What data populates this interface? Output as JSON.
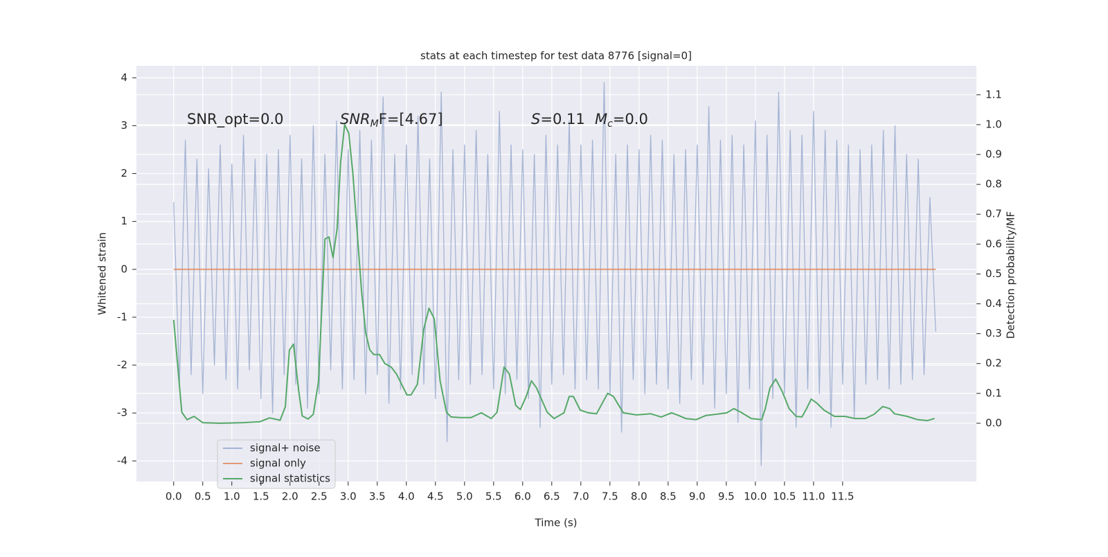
{
  "chart_data": {
    "type": "line",
    "title": "stats at each timestep for test data 8776 [signal=0]",
    "x_label": "Time (s)",
    "y_label": "Whitened strain",
    "y2_label": "Detection probability/MF",
    "annotations": [
      "SNR_opt=0.0",
      [
        "SNR",
        "M",
        "F=[4.67]"
      ],
      [
        "S",
        "=0.11",
        "M",
        "c",
        "=0.0"
      ]
    ],
    "xlim": [
      -0.64,
      13.8
    ],
    "ylim": [
      -4.43,
      4.25
    ],
    "y2lim": [
      -0.195,
      1.197
    ],
    "xticks": [
      {
        "value": 0,
        "label": "0.0"
      },
      {
        "value": 0.5,
        "label": "0.5"
      },
      {
        "value": 1,
        "label": "1.0"
      },
      {
        "value": 1.5,
        "label": "1.5"
      },
      {
        "value": 2,
        "label": "2.0"
      },
      {
        "value": 2.5,
        "label": "2.5"
      },
      {
        "value": 3,
        "label": "3.0"
      },
      {
        "value": 3.5,
        "label": "3.5"
      },
      {
        "value": 4,
        "label": "4.0"
      },
      {
        "value": 4.5,
        "label": "4.5"
      },
      {
        "value": 5,
        "label": "5.0"
      },
      {
        "value": 5.5,
        "label": "5.5"
      },
      {
        "value": 6,
        "label": "6.0"
      },
      {
        "value": 6.5,
        "label": "6.5"
      },
      {
        "value": 7,
        "label": "7.0"
      },
      {
        "value": 7.5,
        "label": "7.5"
      },
      {
        "value": 8,
        "label": "8.0"
      },
      {
        "value": 8.5,
        "label": "8.5"
      },
      {
        "value": 9,
        "label": "9.0"
      },
      {
        "value": 9.5,
        "label": "9.5"
      },
      {
        "value": 10,
        "label": "10.0"
      },
      {
        "value": 10.5,
        "label": "10.5"
      },
      {
        "value": 11,
        "label": "11.0"
      },
      {
        "value": 11.5,
        "label": "11.5"
      }
    ],
    "yticks": [
      4,
      3,
      2,
      1,
      0,
      -1,
      -2,
      -3,
      -4
    ],
    "y2ticks": [
      {
        "value": 0,
        "label": "0.0"
      },
      {
        "value": 0.1,
        "label": "0.1"
      },
      {
        "value": 0.2,
        "label": "0.2"
      },
      {
        "value": 0.3,
        "label": "0.3"
      },
      {
        "value": 0.4,
        "label": "0.4"
      },
      {
        "value": 0.5,
        "label": "0.5"
      },
      {
        "value": 0.6,
        "label": "0.6"
      },
      {
        "value": 0.7,
        "label": "0.7"
      },
      {
        "value": 0.8,
        "label": "0.8"
      },
      {
        "value": 0.9,
        "label": "0.9"
      },
      {
        "value": 1,
        "label": "1.0"
      },
      {
        "value": 1.1,
        "label": "1.1"
      }
    ],
    "grid": true,
    "legend": "lower left",
    "series": [
      {
        "name": "signal+ noise",
        "color": "#92a6cc",
        "x": [
          0.0,
          0.1,
          0.2,
          0.3,
          0.4,
          0.5,
          0.6,
          0.7,
          0.8,
          0.9,
          1.0,
          1.1,
          1.2,
          1.3,
          1.4,
          1.5,
          1.6,
          1.7,
          1.8,
          1.9,
          2.0,
          2.1,
          2.2,
          2.3,
          2.4,
          2.5,
          2.6,
          2.7,
          2.8,
          2.9,
          3.0,
          3.1,
          3.2,
          3.3,
          3.4,
          3.5,
          3.6,
          3.7,
          3.8,
          3.9,
          4.0,
          4.1,
          4.2,
          4.3,
          4.4,
          4.5,
          4.6,
          4.7,
          4.8,
          4.9,
          5.0,
          5.1,
          5.2,
          5.3,
          5.4,
          5.5,
          5.6,
          5.7,
          5.8,
          5.9,
          6.0,
          6.1,
          6.2,
          6.3,
          6.4,
          6.5,
          6.6,
          6.7,
          6.8,
          6.9,
          7.0,
          7.1,
          7.2,
          7.3,
          7.4,
          7.5,
          7.6,
          7.7,
          7.8,
          7.9,
          8.0,
          8.1,
          8.2,
          8.3,
          8.4,
          8.5,
          8.6,
          8.7,
          8.8,
          8.9,
          9.0,
          9.1,
          9.2,
          9.3,
          9.4,
          9.5,
          9.6,
          9.7,
          9.8,
          9.9,
          10.0,
          10.1,
          10.2,
          10.3,
          10.4,
          10.5,
          10.6,
          10.7,
          10.8,
          10.9,
          11.0,
          11.1,
          11.2,
          11.3,
          11.4,
          11.5,
          11.6,
          11.7,
          11.8,
          11.9,
          12.0,
          12.1,
          12.2,
          12.3,
          12.4,
          12.5,
          12.6,
          12.7,
          12.8,
          12.9,
          13.0,
          13.1
        ],
        "values": [
          1.4,
          -2.4,
          2.7,
          -2.2,
          2.3,
          -2.6,
          2.1,
          -2.0,
          2.6,
          -2.3,
          2.2,
          -2.5,
          2.8,
          -2.1,
          2.3,
          -2.7,
          2.4,
          -3.0,
          2.5,
          -2.2,
          2.8,
          -2.4,
          2.3,
          -2.9,
          3.0,
          -2.6,
          2.4,
          -2.1,
          3.1,
          -2.5,
          2.5,
          -2.3,
          2.9,
          -2.6,
          2.7,
          -2.2,
          3.6,
          -2.8,
          2.4,
          -2.5,
          2.6,
          -2.2,
          3.2,
          -2.4,
          2.3,
          -2.7,
          3.7,
          -3.6,
          2.5,
          -2.3,
          2.6,
          -2.4,
          2.9,
          -2.2,
          2.4,
          -2.5,
          3.3,
          -2.6,
          2.6,
          -2.3,
          2.5,
          -2.7,
          2.4,
          -3.3,
          2.8,
          -2.4,
          2.6,
          -2.2,
          3.1,
          -2.5,
          2.6,
          -2.3,
          2.7,
          -2.5,
          3.9,
          -2.6,
          2.4,
          -3.4,
          2.6,
          -2.3,
          2.5,
          -2.6,
          2.8,
          -2.4,
          2.7,
          -2.5,
          2.4,
          -2.8,
          2.5,
          -2.3,
          2.6,
          -2.4,
          3.4,
          -2.9,
          2.7,
          -2.6,
          2.8,
          -3.2,
          2.6,
          -2.5,
          3.1,
          -4.1,
          2.8,
          -2.7,
          3.7,
          -2.6,
          2.9,
          -3.3,
          2.8,
          -2.5,
          3.3,
          -2.6,
          2.9,
          -3.3,
          2.7,
          -2.4,
          2.6,
          -3.1,
          2.5,
          -2.4,
          2.6,
          -2.3,
          2.9,
          -2.5,
          3.0,
          -2.4,
          2.4,
          -2.3,
          2.3,
          -2.2,
          1.5,
          -1.3
        ]
      },
      {
        "name": "signal only",
        "color": "#dd8452",
        "x": [
          0.0,
          13.1
        ],
        "values": [
          0,
          0
        ]
      },
      {
        "name": "signal statistics",
        "color": "#55a868",
        "axis": "y2",
        "x": [
          0.0,
          0.14,
          0.23,
          0.35,
          0.5,
          0.8,
          1.18,
          1.48,
          1.65,
          1.83,
          1.92,
          1.99,
          2.06,
          2.15,
          2.21,
          2.31,
          2.4,
          2.49,
          2.6,
          2.67,
          2.74,
          2.81,
          2.87,
          2.94,
          3.01,
          3.08,
          3.15,
          3.23,
          3.3,
          3.37,
          3.44,
          3.54,
          3.63,
          3.74,
          3.83,
          3.92,
          4.01,
          4.08,
          4.19,
          4.3,
          4.39,
          4.48,
          4.58,
          4.69,
          4.77,
          4.93,
          5.11,
          5.29,
          5.46,
          5.56,
          5.68,
          5.77,
          5.88,
          5.96,
          6.06,
          6.15,
          6.24,
          6.42,
          6.54,
          6.71,
          6.8,
          6.87,
          6.99,
          7.13,
          7.27,
          7.46,
          7.56,
          7.73,
          7.96,
          8.2,
          8.38,
          8.56,
          8.68,
          8.8,
          8.98,
          9.15,
          9.39,
          9.51,
          9.63,
          9.75,
          9.93,
          10.11,
          10.17,
          10.25,
          10.35,
          10.46,
          10.58,
          10.7,
          10.8,
          10.88,
          10.96,
          11.06,
          11.18,
          11.36,
          11.54,
          11.71,
          11.89,
          12.04,
          12.19,
          12.31,
          12.39,
          12.61,
          12.79,
          12.96,
          13.08
        ],
        "values": [
          0.346,
          0.037,
          0.012,
          0.023,
          0.002,
          0.0,
          0.002,
          0.005,
          0.018,
          0.01,
          0.055,
          0.245,
          0.265,
          0.107,
          0.025,
          0.014,
          0.03,
          0.14,
          0.617,
          0.624,
          0.555,
          0.652,
          0.872,
          1.0,
          0.972,
          0.838,
          0.652,
          0.443,
          0.304,
          0.246,
          0.23,
          0.23,
          0.2,
          0.188,
          0.165,
          0.13,
          0.095,
          0.095,
          0.13,
          0.316,
          0.385,
          0.35,
          0.142,
          0.037,
          0.021,
          0.019,
          0.019,
          0.035,
          0.016,
          0.037,
          0.188,
          0.165,
          0.06,
          0.046,
          0.09,
          0.142,
          0.118,
          0.037,
          0.016,
          0.035,
          0.09,
          0.09,
          0.044,
          0.035,
          0.032,
          0.1,
          0.09,
          0.035,
          0.028,
          0.032,
          0.021,
          0.035,
          0.026,
          0.016,
          0.012,
          0.026,
          0.032,
          0.035,
          0.049,
          0.037,
          0.016,
          0.012,
          0.049,
          0.118,
          0.148,
          0.107,
          0.049,
          0.023,
          0.021,
          0.049,
          0.081,
          0.067,
          0.044,
          0.023,
          0.023,
          0.016,
          0.016,
          0.03,
          0.056,
          0.049,
          0.032,
          0.023,
          0.012,
          0.009,
          0.016
        ]
      }
    ]
  }
}
